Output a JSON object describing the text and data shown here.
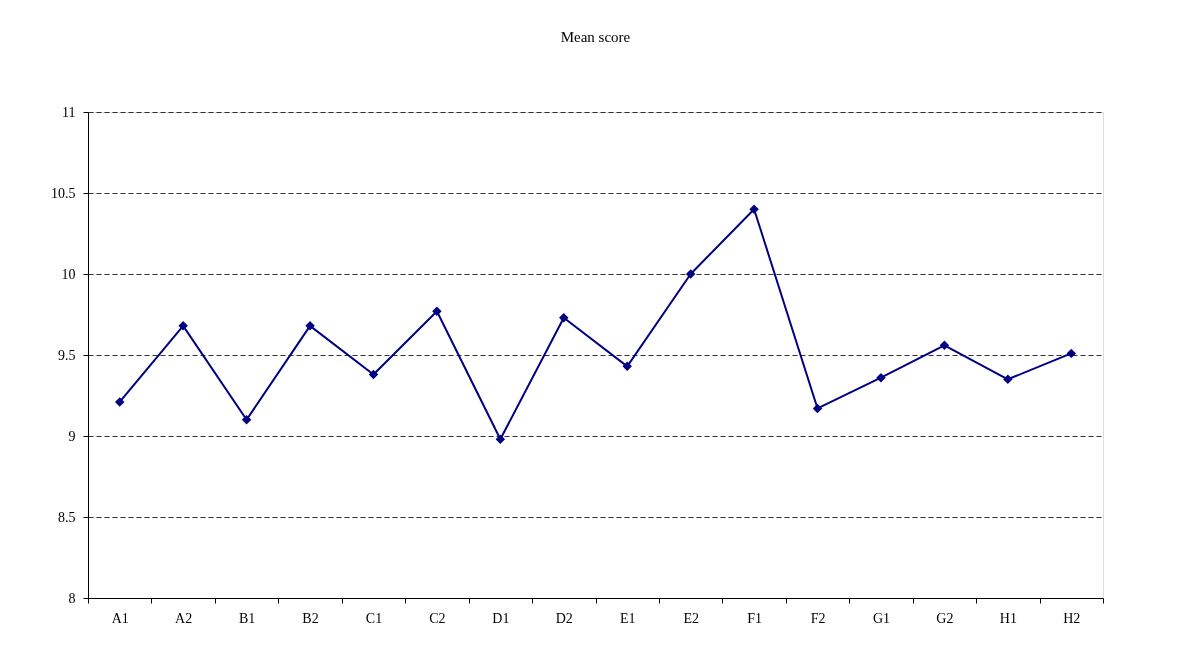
{
  "chart_data": {
    "type": "line",
    "title": "Mean score",
    "categories": [
      "A1",
      "A2",
      "B1",
      "B2",
      "C1",
      "C2",
      "D1",
      "D2",
      "E1",
      "E2",
      "F1",
      "F2",
      "G1",
      "G2",
      "H1",
      "H2"
    ],
    "series": [
      {
        "color": "#000080",
        "values": [
          9.21,
          9.68,
          9.1,
          9.68,
          9.38,
          9.77,
          8.98,
          9.73,
          9.43,
          10.0,
          10.4,
          9.17,
          9.36,
          9.56,
          9.35,
          9.51
        ]
      }
    ],
    "ylim": [
      8,
      11
    ],
    "yticks": [
      8,
      8.5,
      9,
      9.5,
      10,
      10.5,
      11
    ],
    "grid": "y",
    "marker": "diamond",
    "line_style": "solid"
  }
}
